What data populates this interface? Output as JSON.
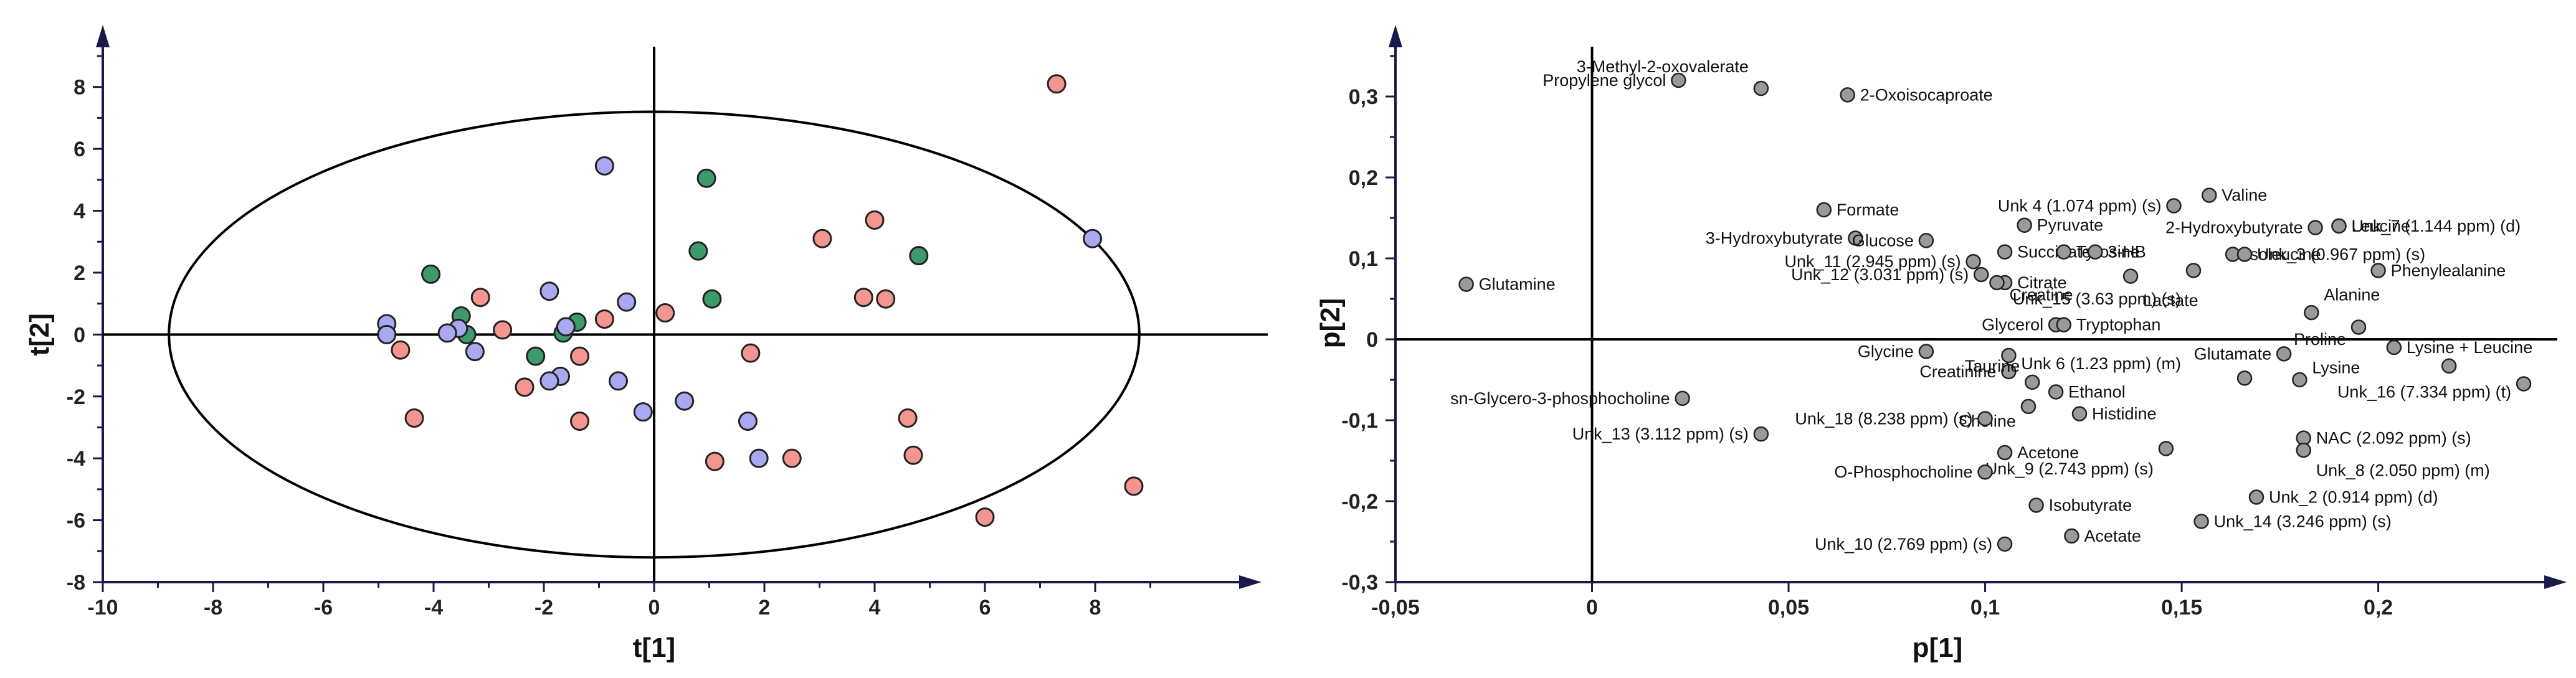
{
  "chart_data": [
    {
      "type": "scatter",
      "xlabel": "t[1]",
      "ylabel": "t[2]",
      "xlim": [
        -10,
        10
      ],
      "ylim": [
        -8,
        9
      ],
      "xticks": [
        -10,
        -8,
        -6,
        -4,
        -2,
        0,
        2,
        4,
        6,
        8
      ],
      "yticks": [
        -8,
        -6,
        -4,
        -2,
        0,
        2,
        4,
        6,
        8
      ],
      "ellipse": {
        "cx": 0,
        "cy": 0,
        "rx": 8.8,
        "ry": 7.2
      },
      "colors": {
        "salmon": "#f4968f",
        "green": "#3d9a6a",
        "blue": "#a8a9f0"
      },
      "points": [
        {
          "x": 7.3,
          "y": 8.1,
          "color": "salmon"
        },
        {
          "x": 8.7,
          "y": -4.9,
          "color": "salmon"
        },
        {
          "x": 6.0,
          "y": -5.9,
          "color": "salmon"
        },
        {
          "x": 4.0,
          "y": 3.7,
          "color": "salmon"
        },
        {
          "x": 3.05,
          "y": 3.1,
          "color": "salmon"
        },
        {
          "x": 3.8,
          "y": 1.2,
          "color": "salmon"
        },
        {
          "x": 4.2,
          "y": 1.15,
          "color": "salmon"
        },
        {
          "x": 4.6,
          "y": -2.7,
          "color": "salmon"
        },
        {
          "x": 4.7,
          "y": -3.9,
          "color": "salmon"
        },
        {
          "x": 2.5,
          "y": -4.0,
          "color": "salmon"
        },
        {
          "x": 1.1,
          "y": -4.1,
          "color": "salmon"
        },
        {
          "x": 1.75,
          "y": -0.6,
          "color": "salmon"
        },
        {
          "x": 0.2,
          "y": 0.7,
          "color": "salmon"
        },
        {
          "x": -0.9,
          "y": 0.5,
          "color": "salmon"
        },
        {
          "x": -1.35,
          "y": -0.7,
          "color": "salmon"
        },
        {
          "x": -1.35,
          "y": -2.8,
          "color": "salmon"
        },
        {
          "x": -2.35,
          "y": -1.7,
          "color": "salmon"
        },
        {
          "x": -2.75,
          "y": 0.15,
          "color": "salmon"
        },
        {
          "x": -3.15,
          "y": 1.2,
          "color": "salmon"
        },
        {
          "x": -4.6,
          "y": -0.5,
          "color": "salmon"
        },
        {
          "x": -4.35,
          "y": -2.7,
          "color": "salmon"
        },
        {
          "x": 0.95,
          "y": 5.05,
          "color": "green"
        },
        {
          "x": 0.8,
          "y": 2.7,
          "color": "green"
        },
        {
          "x": 1.05,
          "y": 1.15,
          "color": "green"
        },
        {
          "x": 4.8,
          "y": 2.55,
          "color": "green"
        },
        {
          "x": -4.05,
          "y": 1.95,
          "color": "green"
        },
        {
          "x": -3.5,
          "y": 0.6,
          "color": "green"
        },
        {
          "x": -3.4,
          "y": 0.0,
          "color": "green"
        },
        {
          "x": -1.4,
          "y": 0.4,
          "color": "green"
        },
        {
          "x": -1.65,
          "y": 0.05,
          "color": "green"
        },
        {
          "x": -2.15,
          "y": -0.7,
          "color": "green"
        },
        {
          "x": -0.9,
          "y": 5.45,
          "color": "blue"
        },
        {
          "x": 7.95,
          "y": 3.1,
          "color": "blue"
        },
        {
          "x": -1.9,
          "y": 1.4,
          "color": "blue"
        },
        {
          "x": -0.5,
          "y": 1.05,
          "color": "blue"
        },
        {
          "x": -1.6,
          "y": 0.25,
          "color": "blue"
        },
        {
          "x": -3.55,
          "y": 0.2,
          "color": "blue"
        },
        {
          "x": -3.75,
          "y": 0.05,
          "color": "blue"
        },
        {
          "x": -3.25,
          "y": -0.55,
          "color": "blue"
        },
        {
          "x": -4.85,
          "y": 0.35,
          "color": "blue"
        },
        {
          "x": -4.85,
          "y": 0.0,
          "color": "blue"
        },
        {
          "x": -1.7,
          "y": -1.35,
          "color": "blue"
        },
        {
          "x": -1.9,
          "y": -1.5,
          "color": "blue"
        },
        {
          "x": -0.65,
          "y": -1.5,
          "color": "blue"
        },
        {
          "x": -0.2,
          "y": -2.5,
          "color": "blue"
        },
        {
          "x": 0.55,
          "y": -2.15,
          "color": "blue"
        },
        {
          "x": 1.7,
          "y": -2.8,
          "color": "blue"
        },
        {
          "x": 1.9,
          "y": -4.0,
          "color": "blue"
        }
      ]
    },
    {
      "type": "scatter",
      "xlabel": "p[1]",
      "ylabel": "p[2]",
      "xlim": [
        -0.05,
        0.24
      ],
      "ylim": [
        -0.3,
        0.35
      ],
      "xticks": [
        -0.05,
        0,
        0.05,
        0.1,
        0.15,
        0.2
      ],
      "xtick_labels": [
        "-0,05",
        "0",
        "0,05",
        "0,1",
        "0,15",
        "0,2"
      ],
      "yticks": [
        -0.3,
        -0.2,
        -0.1,
        0,
        0.1,
        0.2,
        0.3
      ],
      "ytick_labels": [
        "-0,3",
        "-0,2",
        "-0,1",
        "0",
        "0,1",
        "0,2",
        "0,3"
      ],
      "point_color": "#9a9a9a",
      "points": [
        {
          "x": 0.022,
          "y": 0.32,
          "label": "Propylene glycol",
          "anchor": "end"
        },
        {
          "x": 0.043,
          "y": 0.31,
          "label": "3-Methyl-2-oxovalerate",
          "anchor": "end",
          "dy": 0.027
        },
        {
          "x": 0.065,
          "y": 0.302,
          "label": "2-Oxoisocaproate",
          "anchor": "start"
        },
        {
          "x": 0.148,
          "y": 0.165,
          "label": "Unk 4 (1.074 ppm) (s)",
          "anchor": "end"
        },
        {
          "x": 0.157,
          "y": 0.178,
          "label": "Valine",
          "anchor": "start"
        },
        {
          "x": 0.059,
          "y": 0.16,
          "label": "Formate",
          "anchor": "start"
        },
        {
          "x": 0.11,
          "y": 0.141,
          "label": "Pyruvate",
          "anchor": "start"
        },
        {
          "x": 0.184,
          "y": 0.138,
          "label": "2-Hydroxybutyrate",
          "anchor": "end"
        },
        {
          "x": 0.19,
          "y": 0.14,
          "label": "Unk_7 (1.144 ppm) (d)",
          "anchor": "start"
        },
        {
          "x": 0.19,
          "y": 0.14,
          "label": "Leucine",
          "anchor": "start"
        },
        {
          "x": 0.067,
          "y": 0.125,
          "label": "3-Hydroxybutyrate",
          "anchor": "end"
        },
        {
          "x": 0.085,
          "y": 0.122,
          "label": "Glucose",
          "anchor": "end"
        },
        {
          "x": 0.105,
          "y": 0.108,
          "label": "Succinate",
          "anchor": "start"
        },
        {
          "x": 0.12,
          "y": 0.108,
          "label": "Tyrosine",
          "anchor": "start"
        },
        {
          "x": 0.128,
          "y": 0.108,
          "label": "3-HB",
          "anchor": "start"
        },
        {
          "x": 0.163,
          "y": 0.105,
          "label": "Isoleucine",
          "anchor": "start"
        },
        {
          "x": 0.166,
          "y": 0.105,
          "label": "Unk_3 (0.967 ppm) (s)",
          "anchor": "start"
        },
        {
          "x": 0.2,
          "y": 0.085,
          "label": "Phenylealanine",
          "anchor": "start"
        },
        {
          "x": -0.032,
          "y": 0.068,
          "label": "Glutamine",
          "anchor": "start"
        },
        {
          "x": 0.097,
          "y": 0.096,
          "label": "Unk_11 (2.945 ppm) (s)",
          "anchor": "end"
        },
        {
          "x": 0.099,
          "y": 0.08,
          "label": "Unk_12 (3.031 ppm) (s)",
          "anchor": "end"
        },
        {
          "x": 0.105,
          "y": 0.07,
          "label": "Citrate",
          "anchor": "start"
        },
        {
          "x": 0.103,
          "y": 0.07,
          "label": "Creatine",
          "anchor": "start",
          "dy": -0.015
        },
        {
          "x": 0.137,
          "y": 0.078,
          "label": "Lactate",
          "anchor": "start",
          "dy": -0.03
        },
        {
          "x": 0.153,
          "y": 0.085,
          "label": "Unk_15 (3.63 ppm) (s)",
          "anchor": "end",
          "dy": -0.035
        },
        {
          "x": 0.183,
          "y": 0.033,
          "label": "Alanine",
          "anchor": "start",
          "dy": 0.022
        },
        {
          "x": 0.118,
          "y": 0.018,
          "label": "Glycerol",
          "anchor": "end"
        },
        {
          "x": 0.12,
          "y": 0.018,
          "label": "Tryptophan",
          "anchor": "start"
        },
        {
          "x": 0.195,
          "y": 0.015,
          "label": "Proline",
          "anchor": "end",
          "dy": -0.015
        },
        {
          "x": 0.204,
          "y": -0.01,
          "label": "Lysine + Leucine",
          "anchor": "start"
        },
        {
          "x": 0.176,
          "y": -0.018,
          "label": "Glutamate",
          "anchor": "end"
        },
        {
          "x": 0.085,
          "y": -0.015,
          "label": "Glycine",
          "anchor": "end"
        },
        {
          "x": 0.106,
          "y": -0.02,
          "label": "Unk 6 (1.23  ppm) (m)",
          "anchor": "start",
          "dy": -0.01
        },
        {
          "x": 0.106,
          "y": -0.04,
          "label": "Creatinine",
          "anchor": "end"
        },
        {
          "x": 0.18,
          "y": -0.05,
          "label": "Lysine",
          "anchor": "start",
          "dy": 0.015
        },
        {
          "x": 0.166,
          "y": -0.048,
          "label": "",
          "anchor": "start"
        },
        {
          "x": 0.218,
          "y": -0.033,
          "label": "",
          "anchor": "start"
        },
        {
          "x": 0.237,
          "y": -0.055,
          "label": "Unk_16 (7.334 ppm) (t)",
          "anchor": "end",
          "dy": -0.01
        },
        {
          "x": 0.112,
          "y": -0.053,
          "label": "Taurine",
          "anchor": "end",
          "dy": 0.02
        },
        {
          "x": 0.118,
          "y": -0.065,
          "label": "Ethanol",
          "anchor": "start"
        },
        {
          "x": 0.023,
          "y": -0.073,
          "label": "sn-Glycero-3-phosphocholine",
          "anchor": "end"
        },
        {
          "x": 0.111,
          "y": -0.083,
          "label": "Choline",
          "anchor": "end",
          "dy": -0.018
        },
        {
          "x": 0.1,
          "y": -0.098,
          "label": "Unk_18 (8.238 ppm) (s)",
          "anchor": "end"
        },
        {
          "x": 0.124,
          "y": -0.092,
          "label": "Histidine",
          "anchor": "start"
        },
        {
          "x": 0.043,
          "y": -0.117,
          "label": "Unk_13 (3.112 ppm) (s)",
          "anchor": "end"
        },
        {
          "x": 0.181,
          "y": -0.122,
          "label": "NAC (2.092 ppm) (s)",
          "anchor": "start"
        },
        {
          "x": 0.181,
          "y": -0.137,
          "label": "Unk_8 (2.050 ppm) (m)",
          "anchor": "start",
          "dy": -0.025
        },
        {
          "x": 0.105,
          "y": -0.14,
          "label": "Acetone",
          "anchor": "start"
        },
        {
          "x": 0.146,
          "y": -0.135,
          "label": "Unk_9 (2.743 ppm) (s)",
          "anchor": "end",
          "dy": -0.025
        },
        {
          "x": 0.1,
          "y": -0.164,
          "label": "O-Phosphocholine",
          "anchor": "end"
        },
        {
          "x": 0.169,
          "y": -0.195,
          "label": "Unk_2 (0.914 ppm) (d)",
          "anchor": "start"
        },
        {
          "x": 0.113,
          "y": -0.205,
          "label": "Isobutyrate",
          "anchor": "start"
        },
        {
          "x": 0.155,
          "y": -0.225,
          "label": "Unk_14 (3.246 ppm) (s)",
          "anchor": "start"
        },
        {
          "x": 0.122,
          "y": -0.243,
          "label": "Acetate",
          "anchor": "start"
        },
        {
          "x": 0.105,
          "y": -0.253,
          "label": "Unk_10 (2.769 ppm) (s)",
          "anchor": "end"
        }
      ]
    }
  ]
}
